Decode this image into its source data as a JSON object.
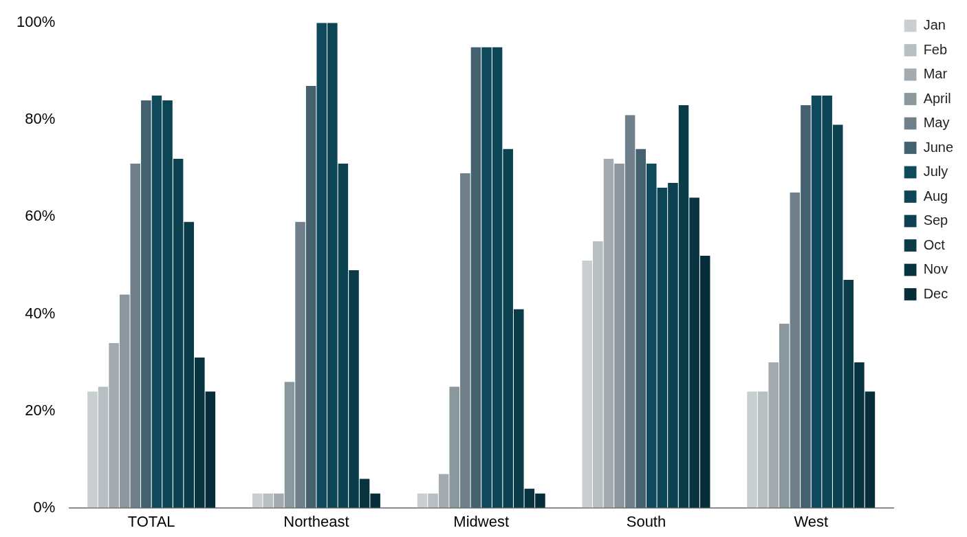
{
  "chart_data": {
    "type": "bar",
    "categories": [
      "TOTAL",
      "Northeast",
      "Midwest",
      "South",
      "West"
    ],
    "series": [
      {
        "name": "Jan",
        "color": "#c9ced1",
        "values": [
          24,
          3,
          3,
          51,
          24
        ]
      },
      {
        "name": "Feb",
        "color": "#b8bfc3",
        "values": [
          25,
          3,
          3,
          55,
          24
        ]
      },
      {
        "name": "Mar",
        "color": "#a3abb0",
        "values": [
          34,
          3,
          7,
          72,
          30
        ]
      },
      {
        "name": "April",
        "color": "#8a979d",
        "values": [
          44,
          26,
          25,
          71,
          38
        ]
      },
      {
        "name": "May",
        "color": "#6f808a",
        "values": [
          71,
          59,
          69,
          81,
          65
        ]
      },
      {
        "name": "June",
        "color": "#43616f",
        "values": [
          84,
          87,
          95,
          74,
          83
        ]
      },
      {
        "name": "July",
        "color": "#0e4a5c",
        "values": [
          85,
          100,
          95,
          71,
          85
        ]
      },
      {
        "name": "Aug",
        "color": "#0c4556",
        "values": [
          84,
          100,
          95,
          66,
          85
        ]
      },
      {
        "name": "Sep",
        "color": "#0b4150",
        "values": [
          72,
          71,
          74,
          67,
          79
        ]
      },
      {
        "name": "Oct",
        "color": "#0a3b48",
        "values": [
          59,
          49,
          41,
          83,
          47
        ]
      },
      {
        "name": "Nov",
        "color": "#083442",
        "values": [
          31,
          6,
          4,
          64,
          30
        ]
      },
      {
        "name": "Dec",
        "color": "#062e3a",
        "values": [
          24,
          3,
          3,
          52,
          24
        ]
      }
    ],
    "ylim": [
      0,
      100
    ],
    "yticks": [
      {
        "value": 0,
        "label": "0%"
      },
      {
        "value": 20,
        "label": "20%"
      },
      {
        "value": 40,
        "label": "40%"
      },
      {
        "value": 60,
        "label": "60%"
      },
      {
        "value": 80,
        "label": "80%"
      },
      {
        "value": 100,
        "label": "100%"
      }
    ],
    "grid": false,
    "legend": "top right"
  }
}
